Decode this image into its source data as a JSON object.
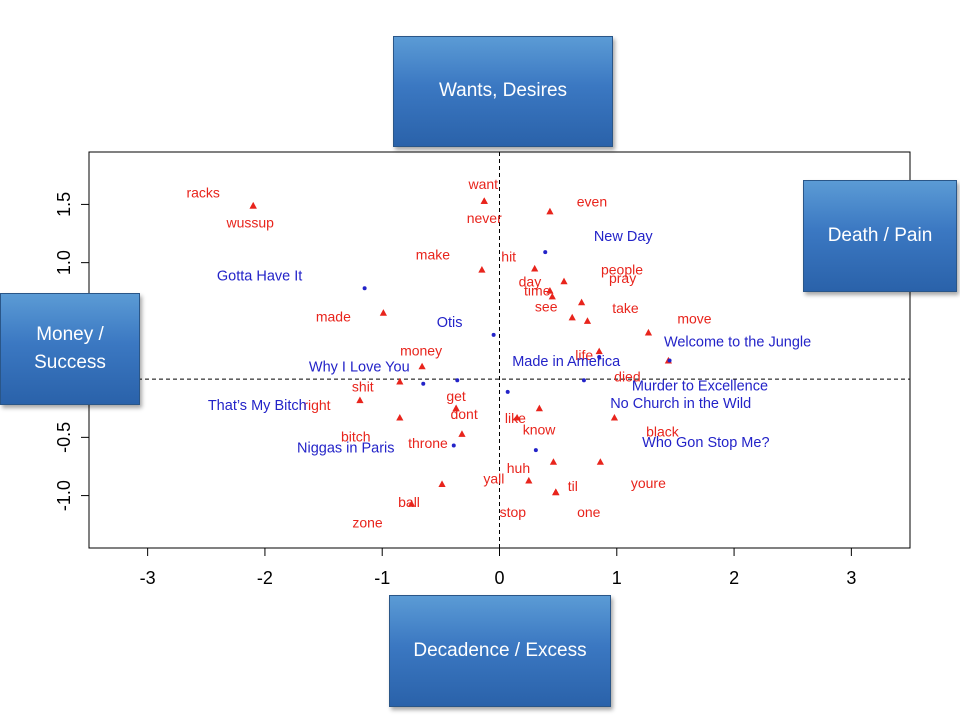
{
  "labels": {
    "top": "Wants, Desires",
    "right": "Death / Pain",
    "left": "Money /\nSuccess",
    "bottom": "Decadence / Excess"
  },
  "chart_data": {
    "type": "scatter",
    "title": "",
    "xlabel": "",
    "ylabel": "",
    "xlim": [
      -3.5,
      3.5
    ],
    "ylim": [
      -1.45,
      1.95
    ],
    "x_ticks": [
      "-3",
      "-2",
      "-1",
      "0",
      "1",
      "2",
      "3"
    ],
    "y_ticks": [
      "-1.0",
      "-0.5",
      "1.0",
      "1.5"
    ],
    "y_tick_values": [
      -1.0,
      -0.5,
      1.0,
      1.5
    ],
    "reference_lines": {
      "x": 0,
      "y": 0
    },
    "colors": {
      "words": "#e8241c",
      "songs": "#2323c8"
    },
    "series": [
      {
        "marker": "triangle",
        "color": "#e8241c",
        "points": [
          {
            "text": "racks",
            "x": -2.1,
            "y": 1.49
          },
          {
            "text": "wussup",
            "x": -2.1,
            "y": 1.49
          },
          {
            "text": "want",
            "x": -0.13,
            "y": 1.53
          },
          {
            "text": "never",
            "x": -0.13,
            "y": 1.53
          },
          {
            "text": "even",
            "x": 0.43,
            "y": 1.44
          },
          {
            "text": "make",
            "x": -0.15,
            "y": 0.94
          },
          {
            "text": "hit",
            "x": 0.3,
            "y": 0.95
          },
          {
            "text": "people",
            "x": 0.55,
            "y": 0.84
          },
          {
            "text": "day",
            "x": 0.43,
            "y": 0.76
          },
          {
            "text": "time",
            "x": 0.45,
            "y": 0.71
          },
          {
            "text": "pray",
            "x": 0.7,
            "y": 0.66
          },
          {
            "text": "take",
            "x": 0.75,
            "y": 0.5
          },
          {
            "text": "see",
            "x": 0.62,
            "y": 0.53
          },
          {
            "text": "made",
            "x": -0.99,
            "y": 0.57
          },
          {
            "text": "move",
            "x": 1.27,
            "y": 0.4
          },
          {
            "text": "life",
            "x": 0.85,
            "y": 0.24
          },
          {
            "text": "money",
            "x": -0.66,
            "y": 0.11
          },
          {
            "text": "shit",
            "x": -0.85,
            "y": -0.02
          },
          {
            "text": "died",
            "x": 1.44,
            "y": 0.16
          },
          {
            "text": "get",
            "x": -0.37,
            "y": -0.25
          },
          {
            "text": "right",
            "x": -1.19,
            "y": -0.18
          },
          {
            "text": "like",
            "x": 0.34,
            "y": -0.25
          },
          {
            "text": "dont",
            "x": -0.37,
            "y": -0.25
          },
          {
            "text": "know",
            "x": 0.15,
            "y": -0.33
          },
          {
            "text": "bitch",
            "x": -0.85,
            "y": -0.33
          },
          {
            "text": "black",
            "x": 0.98,
            "y": -0.33
          },
          {
            "text": "throne",
            "x": -0.32,
            "y": -0.47
          },
          {
            "text": "huh",
            "x": 0.46,
            "y": -0.71
          },
          {
            "text": "yall",
            "x": 0.25,
            "y": -0.87
          },
          {
            "text": "youre",
            "x": 0.86,
            "y": -0.71
          },
          {
            "text": "til",
            "x": 0.48,
            "y": -0.97
          },
          {
            "text": "ball",
            "x": -0.49,
            "y": -0.9
          },
          {
            "text": "stop",
            "x": 0.48,
            "y": -0.97
          },
          {
            "text": "one",
            "x": 0.48,
            "y": -0.97
          },
          {
            "text": "zone",
            "x": -0.75,
            "y": -1.07
          }
        ]
      },
      {
        "marker": "dot",
        "color": "#2323c8",
        "points": [
          {
            "text": "New Day",
            "x": 0.39,
            "y": 1.09
          },
          {
            "text": "Gotta Have It",
            "x": -1.15,
            "y": 0.78
          },
          {
            "text": "Otis",
            "x": -0.05,
            "y": 0.38
          },
          {
            "text": "Welcome to the Jungle",
            "x": 1.45,
            "y": 0.16
          },
          {
            "text": "Made in America",
            "x": 0.85,
            "y": 0.19
          },
          {
            "text": "Why I Love You",
            "x": -0.36,
            "y": -0.01
          },
          {
            "text": "Murder to Excellence",
            "x": 0.72,
            "y": -0.01
          },
          {
            "text": "That’s My Bitch",
            "x": -0.65,
            "y": -0.04
          },
          {
            "text": "No Church in the Wild",
            "x": 0.07,
            "y": -0.11
          },
          {
            "text": "Who Gon Stop Me?",
            "x": 0.31,
            "y": -0.61
          },
          {
            "text": "Niggas in Paris",
            "x": -0.39,
            "y": -0.57
          }
        ]
      }
    ]
  }
}
